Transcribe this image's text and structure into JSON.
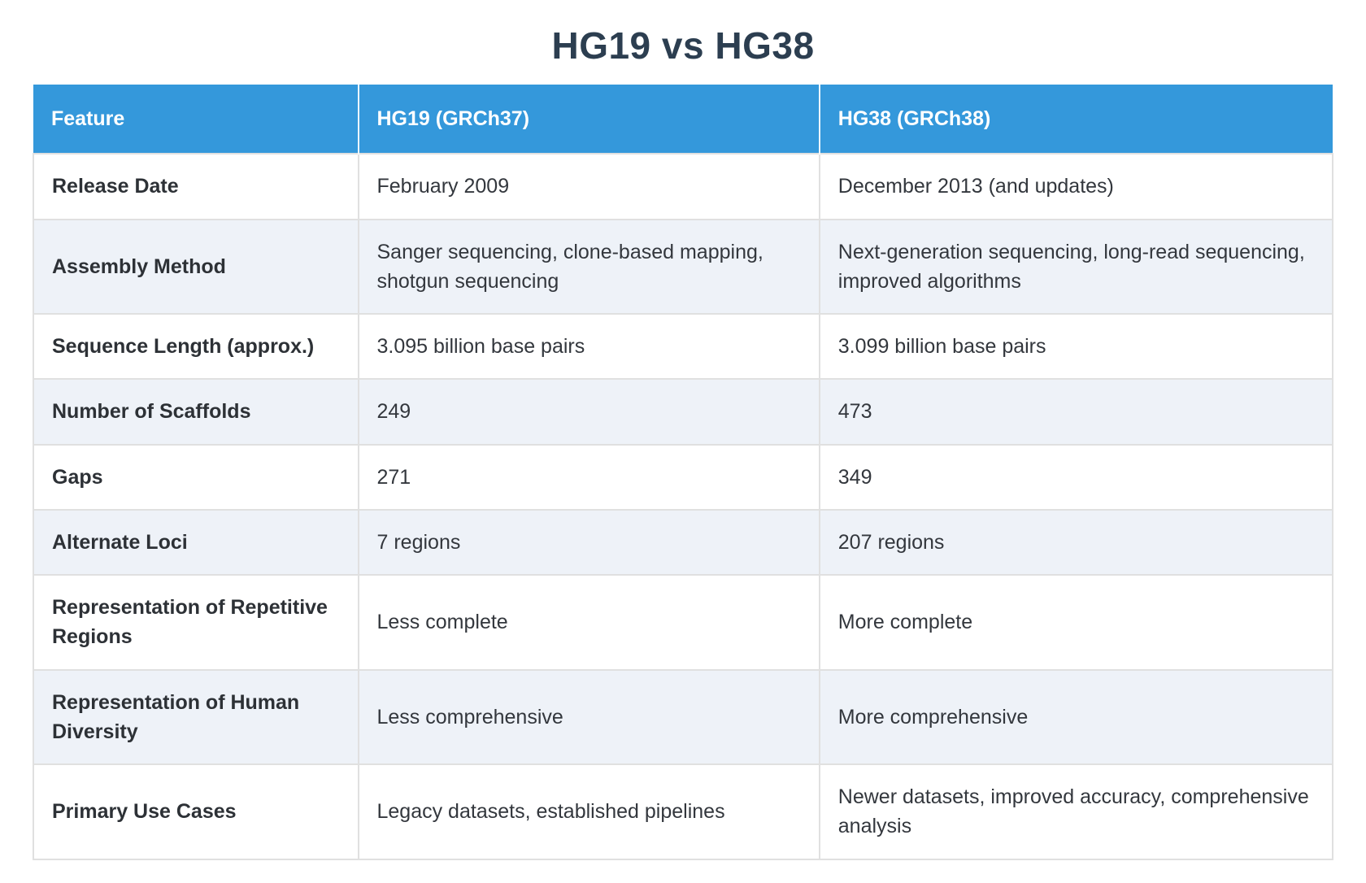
{
  "page_title": "HG19 vs HG38",
  "colors": {
    "header_bg": "#3498db",
    "header_text": "#ffffff",
    "stripe_bg": "#eef2f8",
    "row_bg": "#ffffff",
    "border": "#e0e0e0",
    "title_text": "#2c3e50",
    "body_text": "#33373d",
    "feature_text": "#2d3136"
  },
  "table": {
    "columns": [
      {
        "label": "Feature"
      },
      {
        "label": "HG19 (GRCh37)"
      },
      {
        "label": "HG38 (GRCh38)"
      }
    ],
    "rows": [
      {
        "feature": "Release Date",
        "hg19": "February 2009",
        "hg38": "December 2013 (and updates)"
      },
      {
        "feature": "Assembly Method",
        "hg19": "Sanger sequencing, clone-based mapping, shotgun sequencing",
        "hg38": "Next-generation sequencing, long-read sequencing, improved algorithms"
      },
      {
        "feature": "Sequence Length (approx.)",
        "hg19": "3.095 billion base pairs",
        "hg38": "3.099 billion base pairs"
      },
      {
        "feature": "Number of Scaffolds",
        "hg19": "249",
        "hg38": "473"
      },
      {
        "feature": "Gaps",
        "hg19": "271",
        "hg38": "349"
      },
      {
        "feature": "Alternate Loci",
        "hg19": "7 regions",
        "hg38": "207 regions"
      },
      {
        "feature": "Representation of Repetitive Regions",
        "hg19": "Less complete",
        "hg38": "More complete"
      },
      {
        "feature": "Representation of Human Diversity",
        "hg19": "Less comprehensive",
        "hg38": "More comprehensive"
      },
      {
        "feature": "Primary Use Cases",
        "hg19": "Legacy datasets, established pipelines",
        "hg38": "Newer datasets, improved accuracy, comprehensive analysis"
      }
    ]
  }
}
